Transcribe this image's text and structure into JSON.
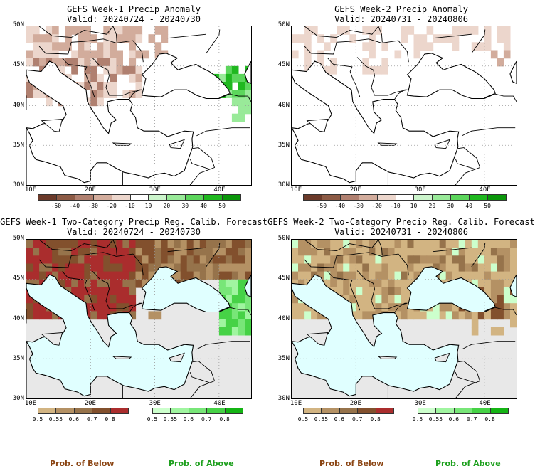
{
  "panels": [
    {
      "title_line1": "GEFS Week-1 Precip Anomaly",
      "title_line2": "Valid: 20240724 - 20240730",
      "type": "anomaly",
      "lat_labels": [
        "50N",
        "45N",
        "40N",
        "35N",
        "30N"
      ],
      "lon_labels": [
        "10E",
        "20E",
        "30E",
        "40E"
      ]
    },
    {
      "title_line1": "GEFS Week-2 Precip Anomaly",
      "title_line2": "Valid: 20240731 - 20240806",
      "type": "anomaly",
      "lat_labels": [
        "50N",
        "45N",
        "40N",
        "35N",
        "30N"
      ],
      "lon_labels": [
        "10E",
        "20E",
        "30E",
        "40E"
      ]
    },
    {
      "title_line1": "GEFS Week-1 Two-Category Precip Reg. Calib. Forecast",
      "title_line2": "Valid: 20240724 - 20240730",
      "type": "probability",
      "lat_labels": [
        "50N",
        "45N",
        "40N",
        "35N",
        "30N"
      ],
      "lon_labels": [
        "10E",
        "20E",
        "30E",
        "40E"
      ]
    },
    {
      "title_line1": "GEFS Week-2 Two-Category Precip Reg. Calib. Forecast",
      "title_line2": "Valid: 20240731 - 20240806",
      "type": "probability",
      "lat_labels": [
        "50N",
        "45N",
        "40N",
        "35N",
        "30N"
      ],
      "lon_labels": [
        "10E",
        "20E",
        "30E",
        "40E"
      ]
    }
  ],
  "anomaly_colorbar": {
    "labels": [
      "-50",
      "-40",
      "-30",
      "-20",
      "-10",
      "10",
      "20",
      "30",
      "40",
      "50"
    ],
    "colors": [
      "#6b3a2a",
      "#8c5a45",
      "#b08070",
      "#d2ac9c",
      "#ecd6cc",
      "#ffffff",
      "#ccf5cc",
      "#99ea99",
      "#5cd65c",
      "#1fb81f",
      "#0a960a"
    ]
  },
  "below_colorbar": {
    "labels": [
      "0.5",
      "0.55",
      "0.6",
      "0.7",
      "0.8"
    ],
    "colors": [
      "#d2b482",
      "#b49164",
      "#96734b",
      "#82502d",
      "#aa2d2d"
    ]
  },
  "above_colorbar": {
    "labels": [
      "0.5",
      "0.55",
      "0.6",
      "0.7",
      "0.8"
    ],
    "colors": [
      "#ccffcc",
      "#a0f5a0",
      "#78e678",
      "#46d246",
      "#14b414"
    ]
  },
  "map_colors": {
    "sea": "#e0ffff",
    "land_default": "#e8e8e8",
    "coast": "#000000"
  },
  "footer": {
    "below_label": "Prob. of Below",
    "above_label": "Prob. of Above",
    "below_color": "#8b4513",
    "above_color": "#1ea01e"
  }
}
